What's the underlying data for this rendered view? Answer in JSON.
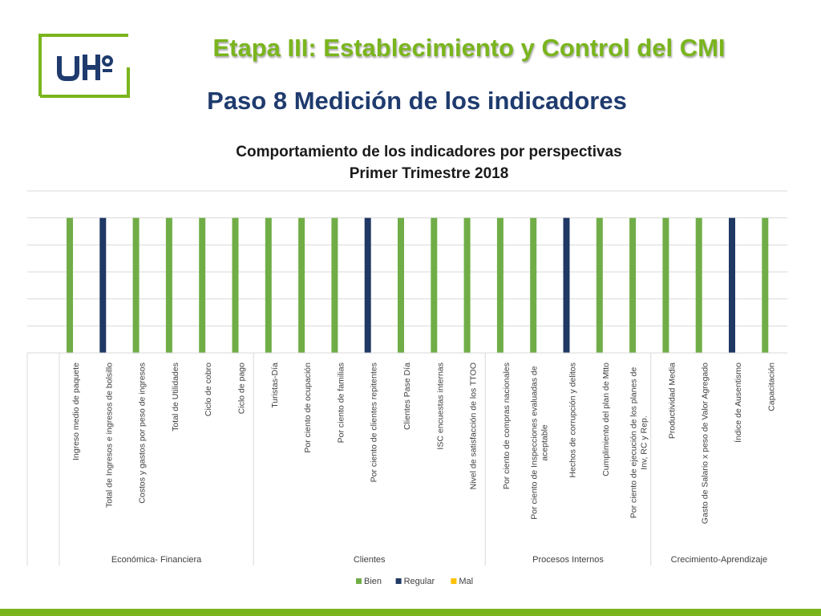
{
  "header": {
    "title": "Etapa III: Establecimiento y Control del CMI",
    "subtitle": "Paso 8 Medición de los indicadores",
    "logo_text": "UHº",
    "brand_green": "#7ab51d",
    "brand_blue": "#1f3b6e"
  },
  "chart_data": {
    "type": "bar",
    "title": "Comportamiento de los indicadores por perspectivas",
    "subtitle": "Primer Trimestre 2018",
    "categories": [
      "Ingreso medio de paquete",
      "Total de Ingresos e ingresos de bolsillo",
      "Costos y gastos por peso de ingresos",
      "Total de Utilidades",
      "Ciclo de cobro",
      "Ciclo de pago",
      "Turistas-Día",
      "Por ciento de ocupación",
      "Por ciento de familias",
      "Por ciento de clientes repitentes",
      "Clientes Pase Día",
      "ISC encuestas internas",
      "Nivel de satisfacción de los TTOO",
      "Por ciento de compras nacionales",
      "Por ciento de Inspecciones evaluadas de aceptable",
      "Hechos de corrupción y delitos",
      "Cumplimiento del plan de Mtto",
      "Por ciento de ejecución de los planes de Inv, RC y Rep.",
      "Productividad Media",
      "Gasto de Salario x peso de Valor Agregado",
      "Índice de Ausentismo",
      "Capacitación"
    ],
    "groups": [
      {
        "name": "Económica- Financiera",
        "count": 6
      },
      {
        "name": "Clientes",
        "count": 7
      },
      {
        "name": "Procesos Internos",
        "count": 5
      },
      {
        "name": "Crecimiento-Aprendizaje",
        "count": 4
      }
    ],
    "status": [
      "Bien",
      "Regular",
      "Bien",
      "Bien",
      "Bien",
      "Bien",
      "Bien",
      "Bien",
      "Bien",
      "Regular",
      "Bien",
      "Bien",
      "Bien",
      "Bien",
      "Bien",
      "Regular",
      "Bien",
      "Bien",
      "Bien",
      "Bien",
      "Regular",
      "Bien"
    ],
    "series": [
      {
        "name": "Bien",
        "color": "#70ad47",
        "values": [
          1,
          0,
          1,
          1,
          1,
          1,
          1,
          1,
          1,
          0,
          1,
          1,
          1,
          1,
          1,
          0,
          1,
          1,
          1,
          1,
          0,
          1
        ]
      },
      {
        "name": "Regular",
        "color": "#1f3864",
        "values": [
          0,
          1,
          0,
          0,
          0,
          0,
          0,
          0,
          0,
          1,
          0,
          0,
          0,
          0,
          0,
          1,
          0,
          0,
          0,
          0,
          1,
          0
        ]
      },
      {
        "name": "Mal",
        "color": "#ffc000",
        "values": [
          0,
          0,
          0,
          0,
          0,
          0,
          0,
          0,
          0,
          0,
          0,
          0,
          0,
          0,
          0,
          0,
          0,
          0,
          0,
          0,
          0,
          0
        ]
      }
    ],
    "ylim": [
      0,
      1.2
    ],
    "gridlines": true,
    "legend": "bottom"
  }
}
